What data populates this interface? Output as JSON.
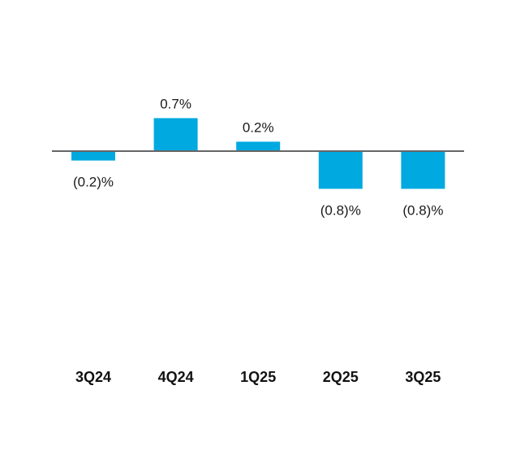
{
  "chart_data": {
    "type": "bar",
    "categories": [
      "3Q24",
      "4Q24",
      "1Q25",
      "2Q25",
      "3Q25"
    ],
    "values": [
      -0.2,
      0.7,
      0.2,
      -0.8,
      -0.8
    ],
    "value_labels": [
      "(0.2)%",
      "0.7%",
      "0.2%",
      "(0.8)%",
      "(0.8)%"
    ],
    "title": "",
    "xlabel": "",
    "ylabel": "",
    "unit": "%",
    "grid": false,
    "legend": "none",
    "colors": {
      "bar": "#00a9e0",
      "baseline": "#666666"
    }
  }
}
